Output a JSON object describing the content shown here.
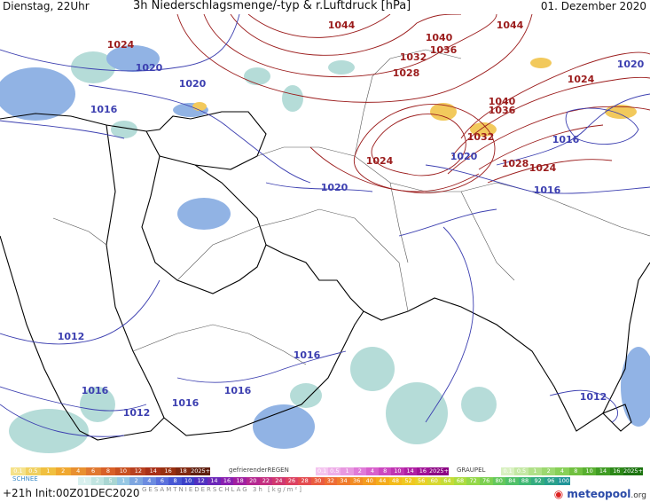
{
  "header": {
    "left": "Dienstag, 22Uhr",
    "title": "3h Niederschlagsmenge/-typ & r.Luftdruck [hPa]",
    "right": "01. Dezember 2020"
  },
  "pressure_labels": [
    {
      "text": "1044",
      "system": "high"
    },
    {
      "text": "1040",
      "system": "high"
    },
    {
      "text": "1036",
      "system": "high"
    },
    {
      "text": "1044",
      "system": "high"
    },
    {
      "text": "1024",
      "system": "high"
    },
    {
      "text": "1032",
      "system": "high"
    },
    {
      "text": "1028",
      "system": "high"
    },
    {
      "text": "1024",
      "system": "high"
    },
    {
      "text": "1040",
      "system": "high"
    },
    {
      "text": "1036",
      "system": "high"
    },
    {
      "text": "1032",
      "system": "high"
    },
    {
      "text": "1028",
      "system": "high"
    },
    {
      "text": "1024",
      "system": "high"
    },
    {
      "text": "1024",
      "system": "high"
    },
    {
      "text": "1020",
      "system": "low"
    },
    {
      "text": "1020",
      "system": "low"
    },
    {
      "text": "1016",
      "system": "low"
    },
    {
      "text": "1020",
      "system": "low"
    },
    {
      "text": "1020",
      "system": "low"
    },
    {
      "text": "1020",
      "system": "low"
    },
    {
      "text": "1016",
      "system": "low"
    },
    {
      "text": "1016",
      "system": "low"
    },
    {
      "text": "1012",
      "system": "low"
    },
    {
      "text": "1016",
      "system": "low"
    },
    {
      "text": "1012",
      "system": "low"
    },
    {
      "text": "1016",
      "system": "low"
    },
    {
      "text": "1016",
      "system": "low"
    },
    {
      "text": "1016",
      "system": "low"
    },
    {
      "text": "1012",
      "system": "low"
    }
  ],
  "legend": {
    "snow": {
      "label": "SCHNEE",
      "values": [
        "0.1",
        "0.5",
        "1",
        "2",
        "4",
        "6",
        "8",
        "10",
        "12",
        "14",
        "16",
        "18",
        "2025+"
      ]
    },
    "freezing_rain": {
      "label": "gefrierenderREGEN",
      "values": [
        "0.1",
        "0.5",
        "1",
        "2",
        "4",
        "8",
        "10",
        "14",
        "16",
        "2025+"
      ]
    },
    "graupel": {
      "label": "GRAUPEL",
      "values": [
        "0.1",
        "0.5",
        "1",
        "2",
        "4",
        "8",
        "10",
        "14",
        "16",
        "2025+"
      ]
    },
    "total": {
      "label": "GESAMTNIEDERSCHLAG 3h [kg/m²]",
      "values": [
        "1",
        "2",
        "5",
        "1",
        "2",
        "4",
        "6",
        "8",
        "10",
        "12",
        "14",
        "16",
        "18",
        "20",
        "22",
        "24",
        "26",
        "28",
        "30",
        "32",
        "34",
        "36",
        "40",
        "44",
        "48",
        "52",
        "56",
        "60",
        "64",
        "68",
        "72",
        "76",
        "80",
        "84",
        "88",
        "92",
        "96",
        "100"
      ]
    }
  },
  "colors": {
    "high_isobar": "#9b1c1c",
    "low_isobar": "#3c3fb0",
    "coast": "#000000",
    "border": "#555555",
    "rain_light": "#a9d6d2",
    "rain_mid": "#7ea6e0",
    "snow": "#f0c040",
    "freezing": "#e07ad8"
  },
  "footer": {
    "run": "+21h Init:00Z01DEC2020"
  },
  "logo": {
    "brand": "meteopool",
    "tld": ".org"
  }
}
